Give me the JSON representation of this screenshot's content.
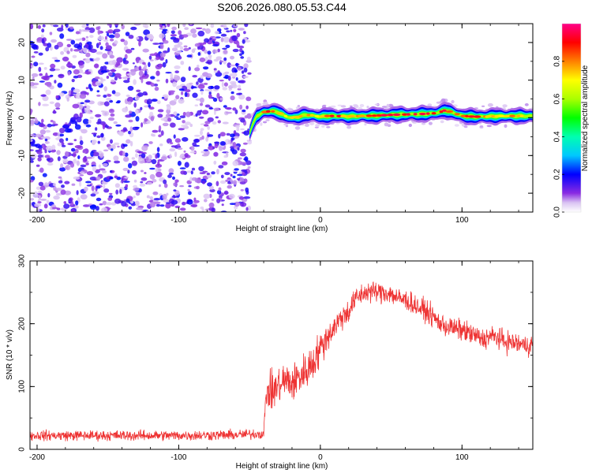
{
  "figure_title": "S206.2026.080.05.53.C44",
  "chart_data": [
    {
      "type": "heatmap",
      "title": "S206.2026.080.05.53.C44",
      "xlabel": "Height of straight line (km)",
      "ylabel": "Frequency (Hz)",
      "xlim": [
        -205,
        150
      ],
      "ylim": [
        -25,
        25
      ],
      "xticks": [
        -200,
        -100,
        0,
        100
      ],
      "yticks": [
        -20,
        -10,
        0,
        10,
        20
      ],
      "noise_region_x": [
        -205,
        -50
      ],
      "signal_track": {
        "x": [
          -50,
          -48,
          -45,
          -40,
          -35,
          -30,
          -25,
          -20,
          -15,
          -10,
          -5,
          0,
          5,
          10,
          20,
          30,
          40,
          50,
          60,
          70,
          80,
          85,
          88,
          90,
          95,
          100,
          110,
          120,
          130,
          140,
          150
        ],
        "frequency": [
          -4.0,
          -2.0,
          0.5,
          1.5,
          1.8,
          1.5,
          0.5,
          0.0,
          0.3,
          0.8,
          0.6,
          0.3,
          0.5,
          0.5,
          0.4,
          0.5,
          0.6,
          0.8,
          0.9,
          1.0,
          1.2,
          1.6,
          2.0,
          1.8,
          1.2,
          0.5,
          0.3,
          0.4,
          0.5,
          0.5,
          0.5
        ],
        "amplitude": [
          0.35,
          0.4,
          0.5,
          0.7,
          0.85,
          0.8,
          0.7,
          0.65,
          0.8,
          0.75,
          0.6,
          0.7,
          0.8,
          0.85,
          0.75,
          0.8,
          0.85,
          0.9,
          0.95,
          0.95,
          0.95,
          0.9,
          0.85,
          0.85,
          0.8,
          0.85,
          0.8,
          0.75,
          0.7,
          0.7,
          0.7
        ]
      },
      "colorbar": {
        "label": "Normalized spectral amplitude",
        "range": [
          0,
          1
        ],
        "ticks": [
          0.0,
          0.2,
          0.4,
          0.6,
          0.8
        ],
        "tick_labels": [
          "0.0",
          "0.2",
          "0.4",
          "0.6",
          "0.8"
        ]
      }
    },
    {
      "type": "line",
      "xlabel": "Height of straight line (km)",
      "ylabel": "SNR (10 * v/v)",
      "xlim": [
        -205,
        150
      ],
      "ylim": [
        0,
        300
      ],
      "xticks": [
        -200,
        -100,
        0,
        100
      ],
      "yticks": [
        0,
        100,
        200,
        300
      ],
      "line_color": "#ee3333",
      "series": [
        {
          "name": "SNR",
          "envelope": {
            "x": [
              -205,
              -150,
              -100,
              -60,
              -40,
              -38,
              -35,
              -30,
              -25,
              -20,
              -15,
              -10,
              -5,
              0,
              5,
              10,
              15,
              20,
              25,
              30,
              35,
              40,
              45,
              50,
              55,
              60,
              65,
              70,
              75,
              80,
              85,
              90,
              95,
              100,
              105,
              110,
              115,
              120,
              125,
              130,
              135,
              140,
              145,
              150
            ],
            "mean": [
              22,
              22,
              22,
              23,
              25,
              95,
              90,
              100,
              110,
              105,
              115,
              125,
              140,
              160,
              180,
              195,
              210,
              220,
              240,
              248,
              252,
              250,
              250,
              248,
              240,
              238,
              232,
              225,
              220,
              210,
              200,
              195,
              192,
              190,
              185,
              180,
              175,
              180,
              178,
              172,
              170,
              168,
              165,
              168
            ],
            "noise": [
              12,
              12,
              12,
              12,
              12,
              40,
              45,
              45,
              45,
              45,
              45,
              45,
              45,
              40,
              35,
              30,
              30,
              30,
              25,
              25,
              25,
              25,
              25,
              25,
              25,
              25,
              25,
              25,
              25,
              25,
              25,
              25,
              25,
              25,
              25,
              25,
              25,
              25,
              25,
              25,
              25,
              25,
              25,
              25
            ]
          }
        }
      ]
    }
  ]
}
